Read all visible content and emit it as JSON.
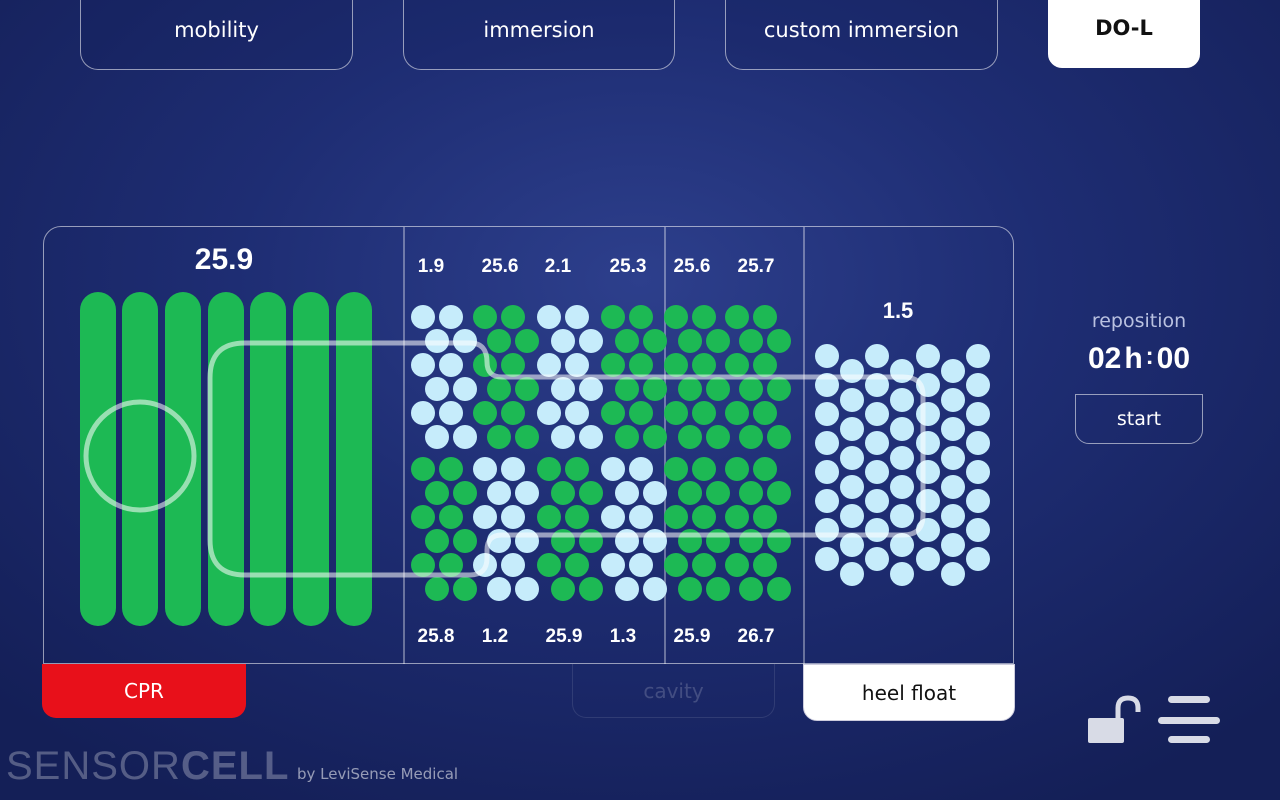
{
  "tabs": [
    {
      "label": "mobility",
      "active": false
    },
    {
      "label": "immersion",
      "active": false
    },
    {
      "label": "custom immersion",
      "active": false
    },
    {
      "label": "DO-L",
      "active": true
    }
  ],
  "bed": {
    "head_value": "25.9",
    "top_values": [
      "1.9",
      "25.6",
      "2.1",
      "25.3",
      "25.6",
      "25.7"
    ],
    "bottom_values": [
      "25.8",
      "1.2",
      "25.9",
      "1.3",
      "25.9",
      "26.7"
    ],
    "heel_value": "1.5"
  },
  "buttons": {
    "cpr": "CPR",
    "cavity": "cavity",
    "heel_float": "heel float"
  },
  "reposition": {
    "label": "reposition",
    "hours": "02",
    "h_unit": "h",
    "sep": ":",
    "minutes": "00",
    "start_label": "start"
  },
  "brand": {
    "name_light": "SENSOR",
    "name_bold": "CELL",
    "by": "by LeviSense Medical"
  },
  "colors": {
    "inflated": "#1db954",
    "deflated": "#c6ecfb",
    "cpr": "#e8101a"
  },
  "icons": [
    "unlocked-padlock-icon",
    "menu-icon"
  ]
}
